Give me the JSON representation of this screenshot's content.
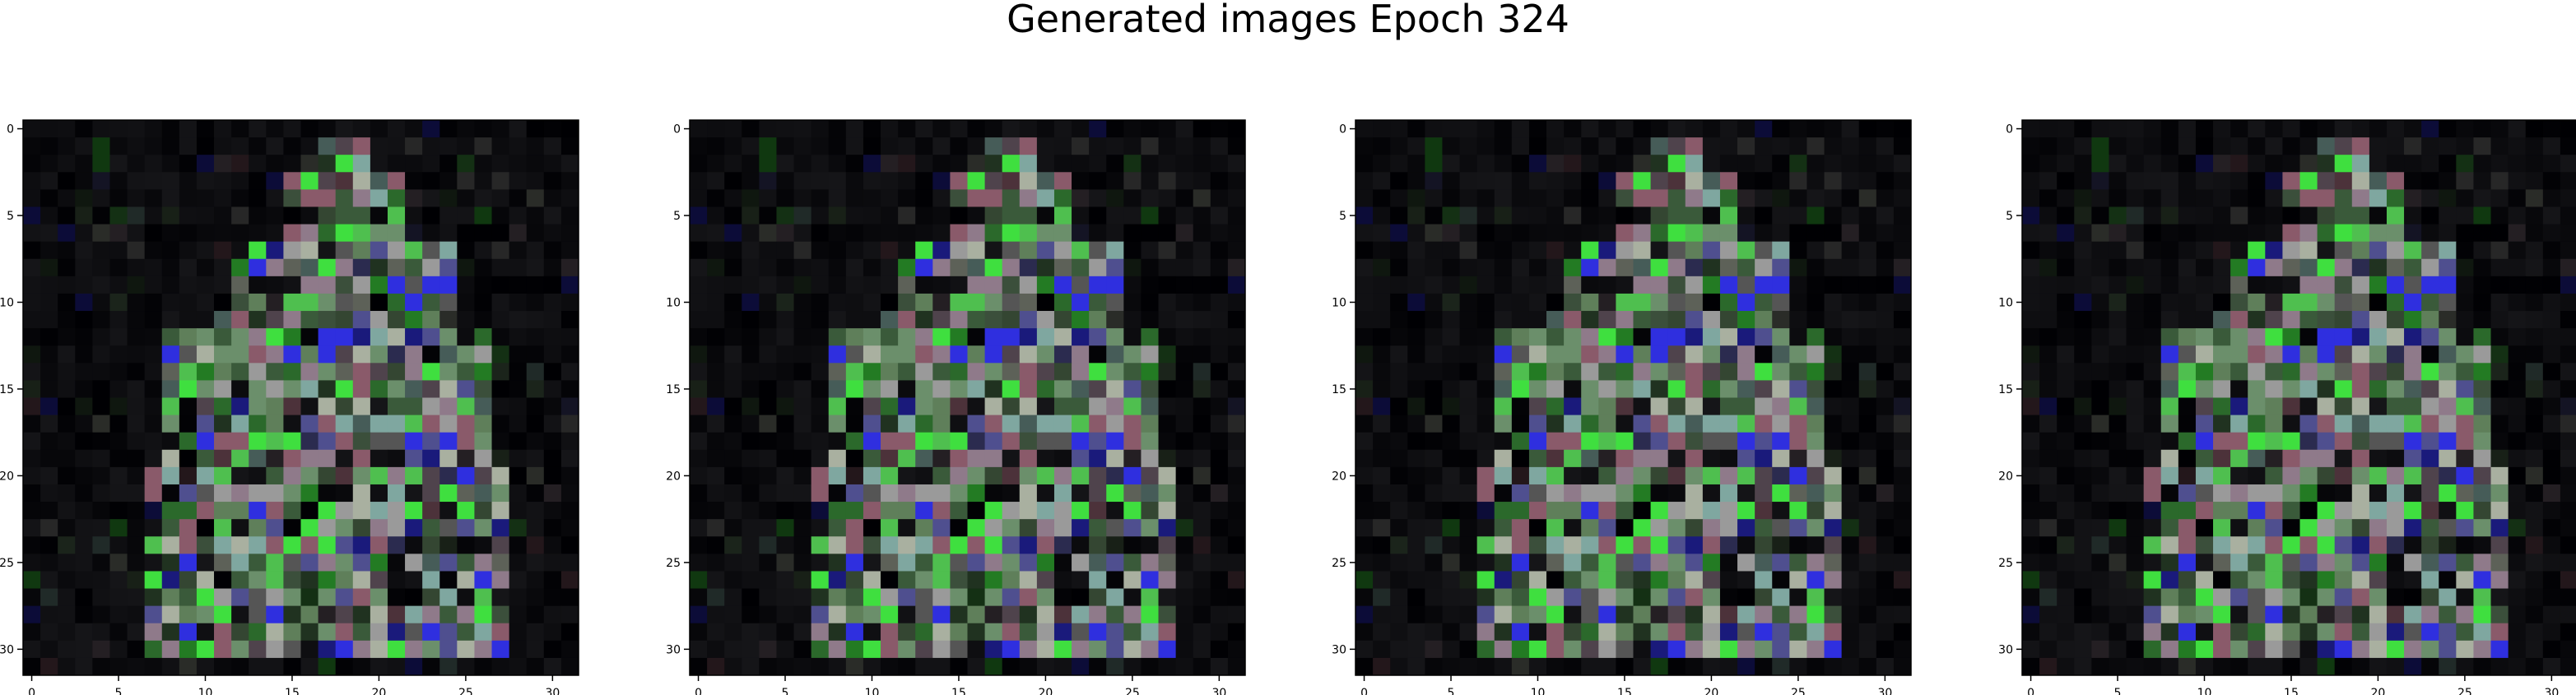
{
  "figure": {
    "title": "Generated images Epoch 324"
  },
  "chart_data": [
    {
      "type": "heatmap",
      "xlim": [
        0,
        31
      ],
      "ylim": [
        31,
        0
      ],
      "xticks": [
        "0",
        "5",
        "10",
        "15",
        "20",
        "25",
        "30"
      ],
      "yticks": [
        "0",
        "5",
        "10",
        "15",
        "20",
        "25",
        "30"
      ],
      "grid": false
    },
    {
      "type": "heatmap",
      "xlim": [
        0,
        31
      ],
      "ylim": [
        31,
        0
      ],
      "xticks": [
        "0",
        "5",
        "10",
        "15",
        "20",
        "25",
        "30"
      ],
      "yticks": [
        "0",
        "5",
        "10",
        "15",
        "20",
        "25",
        "30"
      ],
      "grid": false
    },
    {
      "type": "heatmap",
      "xlim": [
        0,
        31
      ],
      "ylim": [
        31,
        0
      ],
      "xticks": [
        "0",
        "5",
        "10",
        "15",
        "20",
        "25",
        "30"
      ],
      "yticks": [
        "0",
        "5",
        "10",
        "15",
        "20",
        "25",
        "30"
      ],
      "grid": false
    },
    {
      "type": "heatmap",
      "xlim": [
        0,
        31
      ],
      "ylim": [
        31,
        0
      ],
      "xticks": [
        "0",
        "5",
        "10",
        "15",
        "20",
        "25",
        "30"
      ],
      "yticks": [
        "0",
        "5",
        "10",
        "15",
        "20",
        "25",
        "30"
      ],
      "grid": false
    }
  ],
  "colors": {
    "background": "#050505",
    "pixel_palette": [
      "#6b8f6b",
      "#8f7a8a",
      "#5f7f5a",
      "#9a9a9a",
      "#4f4f8f",
      "#4fbf4f",
      "#3fdf3f",
      "#2f2fdf",
      "#7fa7a0",
      "#8a5a6a",
      "#a9b0a0",
      "#3a5a3a"
    ]
  }
}
